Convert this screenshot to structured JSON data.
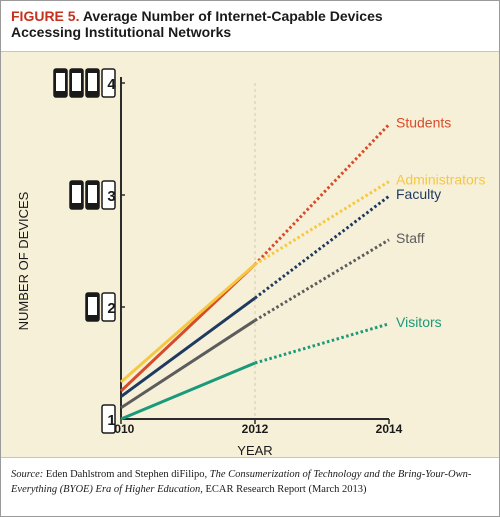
{
  "figure": {
    "label": "FIGURE 5.",
    "title_line1": "Average Number of Internet-Capable Devices",
    "title_line2": "Accessing Institutional Networks"
  },
  "source": {
    "prefix": "Source:",
    "authors": " Eden Dahlstrom and Stephen diFilipo, ",
    "work_title": "The Consumerization of Technology and the Bring-Your-Own-Everything (BYOE) Era of Higher Education,",
    "suffix": " ECAR Research Report (March 2013)"
  },
  "colors": {
    "Students": "#d84b2a",
    "Administrators": "#f5c842",
    "Faculty": "#1f3a5f",
    "Staff": "#5c5c5c",
    "Visitors": "#1a9a7a",
    "axis": "#2b2b2b",
    "grid": "#d6cba8"
  },
  "chart_data": {
    "type": "line",
    "xlabel": "YEAR",
    "ylabel": "NUMBER OF DEVICES",
    "x": [
      2010,
      2012,
      2014
    ],
    "x_ticks": [
      "2010",
      "2012",
      "2014"
    ],
    "y_ticks": [
      1,
      2,
      3,
      4
    ],
    "y_tick_labels": [
      "1",
      "2",
      "3",
      "4"
    ],
    "ylim": [
      1,
      4
    ],
    "xlim": [
      2010,
      2014
    ],
    "dashed_after": 2012,
    "legend": "labels at line ends",
    "series": [
      {
        "name": "Students",
        "values": [
          1.25,
          2.38,
          3.63
        ]
      },
      {
        "name": "Administrators",
        "values": [
          1.33,
          2.38,
          3.12
        ]
      },
      {
        "name": "Faculty",
        "values": [
          1.2,
          2.08,
          2.99
        ]
      },
      {
        "name": "Staff",
        "values": [
          1.1,
          1.88,
          2.6
        ]
      },
      {
        "name": "Visitors",
        "values": [
          1.0,
          1.5,
          1.85
        ]
      }
    ]
  }
}
